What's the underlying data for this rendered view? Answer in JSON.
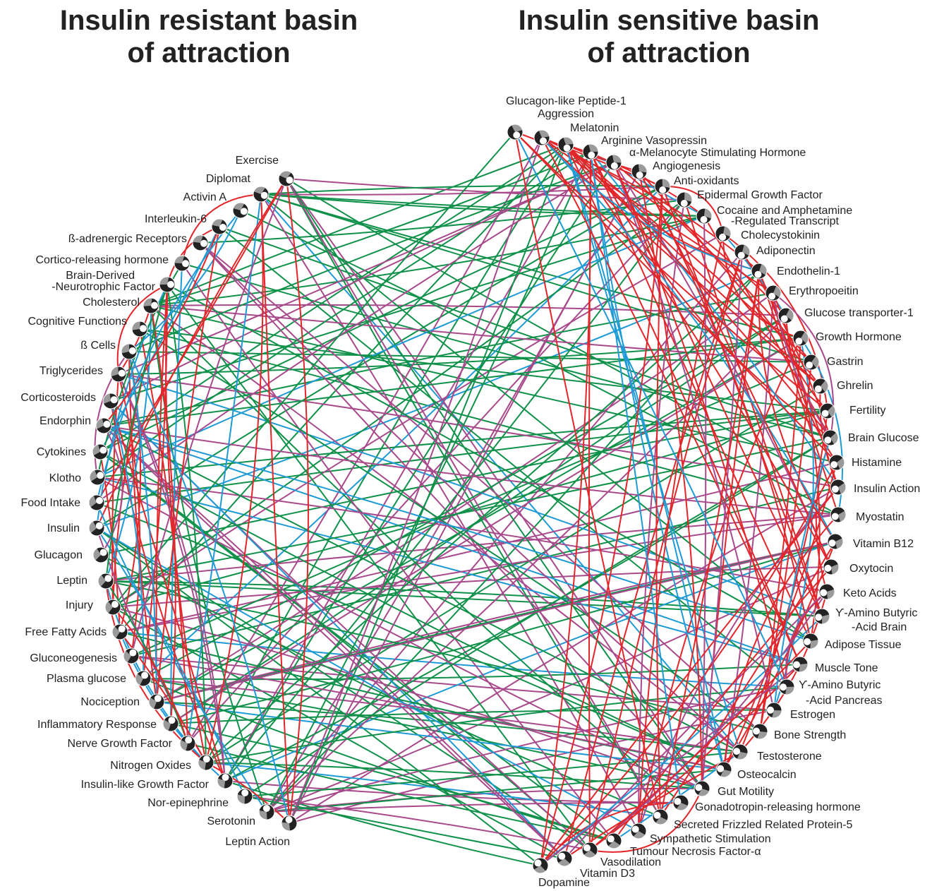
{
  "titles": {
    "left": [
      "Insulin resistant basin",
      "of attraction"
    ],
    "right": [
      "Insulin sensitive basin",
      "of attraction"
    ]
  },
  "colors": {
    "green": "#10914a",
    "red": "#e3262a",
    "purple": "#a8498c",
    "blue": "#1e9ad6",
    "node_dark": "#222222",
    "node_grey": "#9a9a9a"
  },
  "left_nodes": [
    [
      "Exercise"
    ],
    [
      "Diplomat"
    ],
    [
      "Activin A"
    ],
    [
      "Interleukin-6"
    ],
    [
      "ß-adrenergic Receptors"
    ],
    [
      "Cortico-releasing hormone"
    ],
    [
      "Brain-Derived",
      "-Neurotrophic Factor"
    ],
    [
      "Cholesterol"
    ],
    [
      "Cognitive Functions"
    ],
    [
      "ß Cells"
    ],
    [
      "Triglycerides"
    ],
    [
      "Corticosteroids"
    ],
    [
      "Endorphin"
    ],
    [
      "Cytokines"
    ],
    [
      "Klotho"
    ],
    [
      "Food Intake"
    ],
    [
      "Insulin"
    ],
    [
      "Glucagon"
    ],
    [
      "Leptin"
    ],
    [
      "Injury"
    ],
    [
      "Free Fatty Acids"
    ],
    [
      "Gluconeogenesis"
    ],
    [
      "Plasma glucose"
    ],
    [
      "Nociception"
    ],
    [
      "Inflammatory Response"
    ],
    [
      "Nerve Growth Factor"
    ],
    [
      "Nitrogen Oxides"
    ],
    [
      "Insulin-like Growth Factor"
    ],
    [
      "Nor-epinephrine"
    ],
    [
      "Serotonin"
    ],
    [
      "Leptin Action"
    ]
  ],
  "right_nodes": [
    [
      "Glucagon-like Peptide-1"
    ],
    [
      "Aggression"
    ],
    [
      "Melatonin"
    ],
    [
      "Arginine Vasopressin"
    ],
    [
      "α-Melanocyte Stimulating Hormone"
    ],
    [
      "Angiogenesis"
    ],
    [
      "Anti-oxidants"
    ],
    [
      "Epidermal Growth Factor"
    ],
    [
      "Cocaine and Amphetamine",
      "-Regulated Transcript"
    ],
    [
      "Cholecystokinin"
    ],
    [
      "Adiponectin"
    ],
    [
      "Endothelin-1"
    ],
    [
      "Erythropoeitin"
    ],
    [
      "Glucose transporter-1"
    ],
    [
      "Growth Hormone"
    ],
    [
      "Gastrin"
    ],
    [
      "Ghrelin"
    ],
    [
      "Fertility"
    ],
    [
      "Brain Glucose"
    ],
    [
      "Histamine"
    ],
    [
      "Insulin Action"
    ],
    [
      "Myostatin"
    ],
    [
      "Vitamin B12"
    ],
    [
      "Oxytocin"
    ],
    [
      "Keto Acids"
    ],
    [
      "ϒ-Amino Butyric",
      "-Acid Brain"
    ],
    [
      "Adipose Tissue"
    ],
    [
      "Muscle Tone"
    ],
    [
      "ϒ-Amino Butyric",
      "-Acid Pancreas"
    ],
    [
      "Estrogen"
    ],
    [
      "Bone Strength"
    ],
    [
      "Testosterone"
    ],
    [
      "Osteocalcin"
    ],
    [
      "Gut Motility"
    ],
    [
      "Gonadotropin-releasing hormone"
    ],
    [
      "Secreted Frizzled Related Protein-5"
    ],
    [
      "Sympathetic Stimulation"
    ],
    [
      "Tumour Necrosis Factor-α"
    ],
    [
      "Vasodilation"
    ],
    [
      "Vitamin D3"
    ],
    [
      "Dopamine"
    ]
  ]
}
